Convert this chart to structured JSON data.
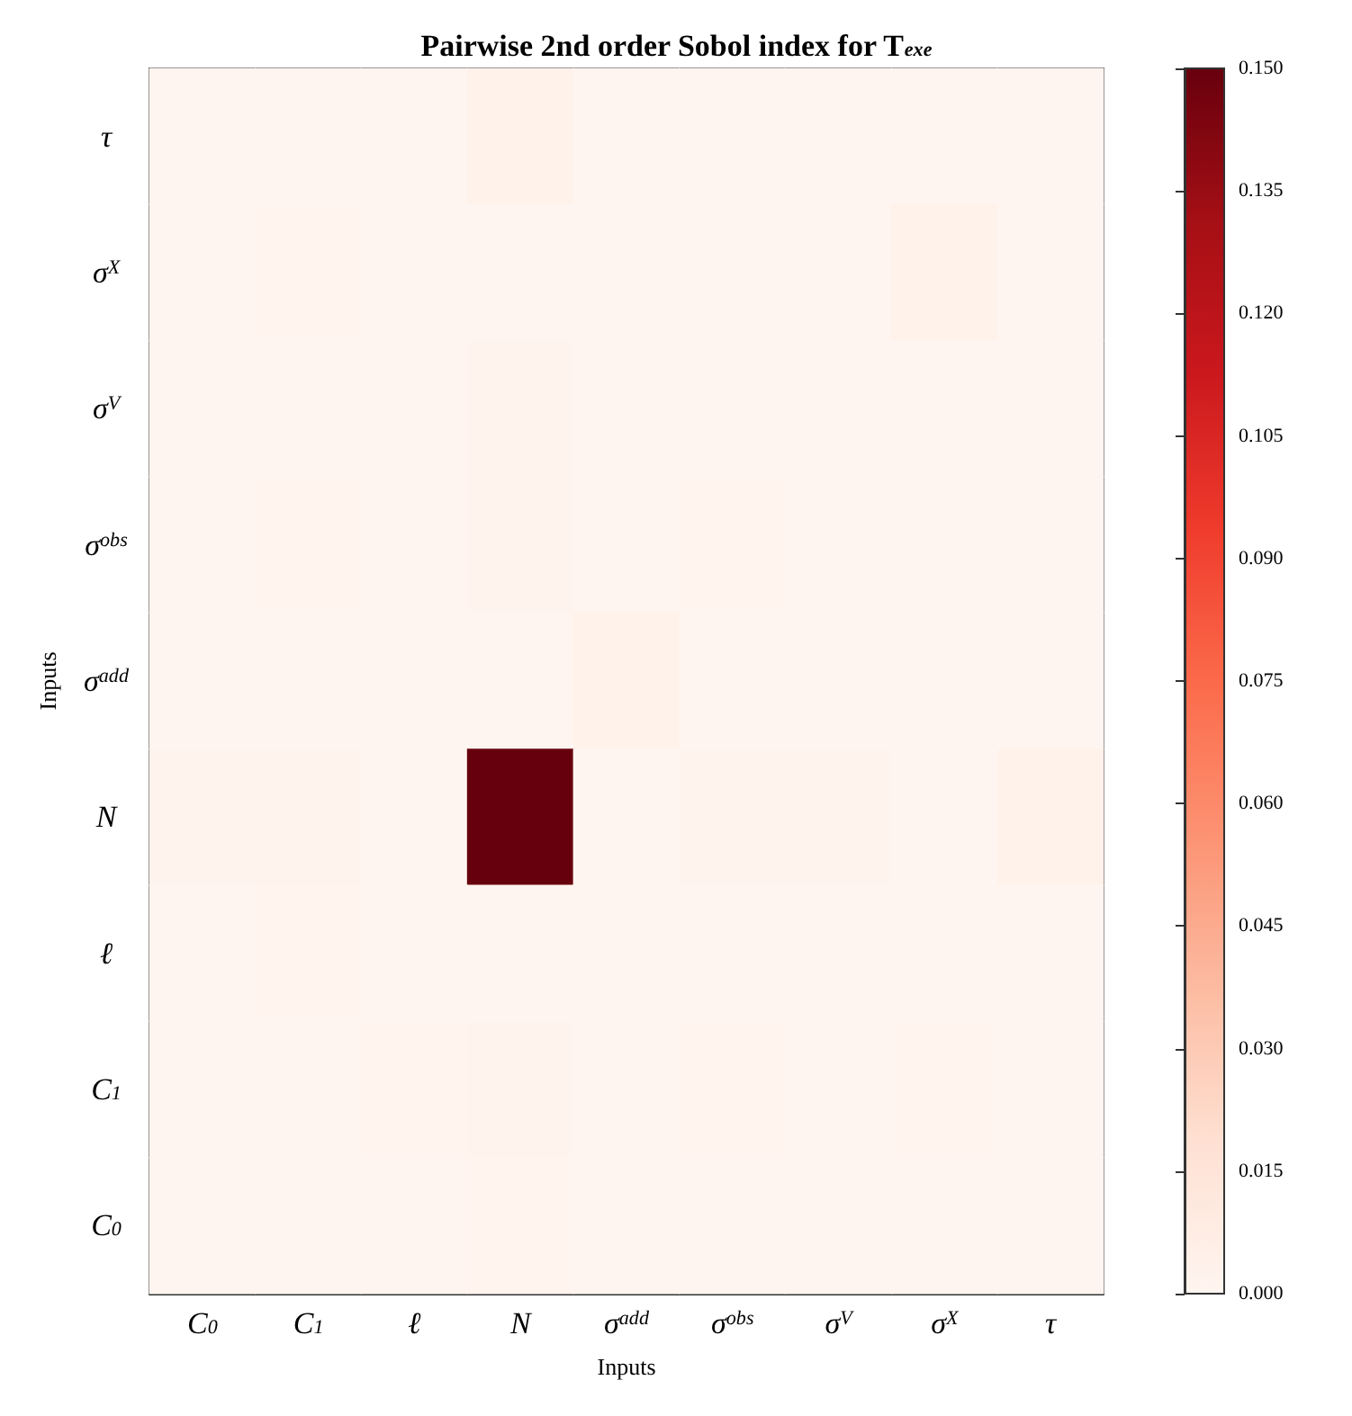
{
  "chart_data": {
    "type": "heatmap",
    "title": "Pairwise 2nd order Sobol index for T$_{exe}$",
    "xlabel": "Inputs",
    "ylabel": "Inputs",
    "categories": [
      "C$_{0}$",
      "C$_{1}$",
      "ℓ",
      "N",
      "σ$^{add}$",
      "σ$^{obs}$",
      "σ$^{V}$",
      "σ$^{X}$",
      "τ"
    ],
    "y_categories": [
      "τ",
      "σ$^{X}$",
      "σ$^{V}$",
      "σ$^{obs}$",
      "σ$^{add}$",
      "N",
      "ℓ",
      "C$_{1}$",
      "C$_{0}$"
    ],
    "cells": [
      [
        0,
        0,
        0,
        0.003,
        0,
        0,
        0,
        0,
        0
      ],
      [
        0,
        0.001,
        0,
        0,
        0,
        0,
        0,
        0.003,
        0
      ],
      [
        0,
        0,
        0,
        0.002,
        0,
        0,
        0,
        0,
        0
      ],
      [
        0,
        0.001,
        0,
        0.002,
        0,
        0.001,
        0,
        0,
        0
      ],
      [
        0,
        0,
        0,
        0,
        0.003,
        0,
        0,
        0,
        0
      ],
      [
        0.002,
        0.002,
        0,
        0.15,
        0,
        0.002,
        0.002,
        0,
        0.003
      ],
      [
        0,
        0.001,
        0,
        0,
        0,
        0,
        0,
        0,
        0
      ],
      [
        0,
        0,
        0.001,
        0.002,
        0,
        0.001,
        0,
        0.001,
        0
      ],
      [
        0,
        0,
        0,
        0.001,
        0,
        0,
        0,
        0,
        0
      ]
    ],
    "clim": [
      0,
      0.15
    ],
    "cticks": [
      {
        "value": 0,
        "label": "0.000"
      },
      {
        "value": 0.015,
        "label": "0.015"
      },
      {
        "value": 0.03,
        "label": "0.030"
      },
      {
        "value": 0.045,
        "label": "0.045"
      },
      {
        "value": 0.06,
        "label": "0.060"
      },
      {
        "value": 0.075,
        "label": "0.075"
      },
      {
        "value": 0.09,
        "label": "0.090"
      },
      {
        "value": 0.105,
        "label": "0.105"
      },
      {
        "value": 0.12,
        "label": "0.120"
      },
      {
        "value": 0.135,
        "label": "0.135"
      },
      {
        "value": 0.15,
        "label": "0.150"
      }
    ]
  }
}
